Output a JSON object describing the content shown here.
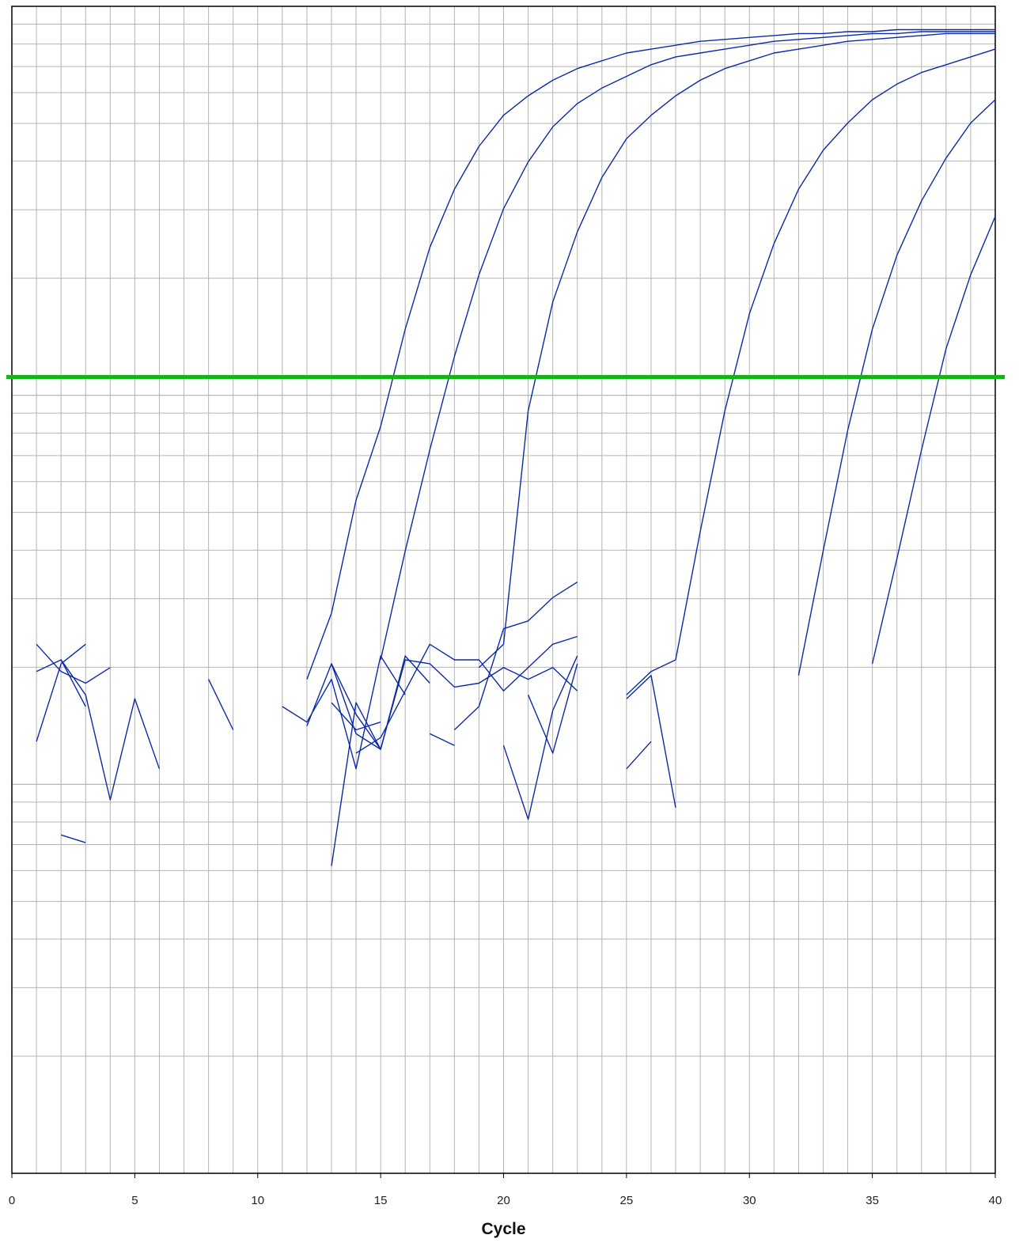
{
  "chart_data": {
    "type": "line",
    "title": "",
    "xlabel": "Cycle",
    "ylabel": "",
    "xlim": [
      0,
      40
    ],
    "xticks": [
      0,
      5,
      10,
      15,
      20,
      25,
      30,
      35,
      40
    ],
    "yscale": "log",
    "ylim_decades": [
      0,
      3
    ],
    "ytick_labels_visible": false,
    "grid": true,
    "legend": "none",
    "threshold": {
      "value_decades": 2.047,
      "color": "#16b316"
    },
    "line_color": "#0c2aa8",
    "series": [
      {
        "segments": [
          [
            [
              1,
              1.29
            ],
            [
              2,
              1.32
            ],
            [
              3,
              1.23
            ],
            [
              4,
              0.96
            ],
            [
              5,
              1.22
            ],
            [
              6,
              1.04
            ]
          ],
          [
            [
              12,
              1.27
            ],
            [
              13,
              1.44
            ],
            [
              14,
              1.73
            ],
            [
              15,
              1.92
            ],
            [
              16,
              2.17
            ],
            [
              17,
              2.38
            ],
            [
              18,
              2.53
            ],
            [
              19,
              2.64
            ],
            [
              20,
              2.72
            ],
            [
              21,
              2.77
            ],
            [
              22,
              2.81
            ],
            [
              23,
              2.84
            ],
            [
              24,
              2.86
            ],
            [
              25,
              2.88
            ],
            [
              26,
              2.89
            ],
            [
              27,
              2.9
            ],
            [
              28,
              2.91
            ],
            [
              29,
              2.915
            ],
            [
              30,
              2.92
            ],
            [
              31,
              2.925
            ],
            [
              32,
              2.93
            ],
            [
              33,
              2.93
            ],
            [
              34,
              2.935
            ],
            [
              35,
              2.935
            ],
            [
              36,
              2.94
            ],
            [
              37,
              2.94
            ],
            [
              38,
              2.94
            ],
            [
              39,
              2.94
            ],
            [
              40,
              2.94
            ]
          ]
        ]
      },
      {
        "segments": [
          [
            [
              1,
              1.11
            ],
            [
              2,
              1.31
            ],
            [
              3,
              1.36
            ]
          ],
          [
            [
              15,
              1.32
            ],
            [
              16,
              1.6
            ],
            [
              17,
              1.86
            ],
            [
              18,
              2.1
            ],
            [
              19,
              2.31
            ],
            [
              20,
              2.48
            ],
            [
              21,
              2.6
            ],
            [
              22,
              2.69
            ],
            [
              23,
              2.75
            ],
            [
              24,
              2.79
            ],
            [
              25,
              2.82
            ],
            [
              26,
              2.85
            ],
            [
              27,
              2.87
            ],
            [
              28,
              2.88
            ],
            [
              29,
              2.89
            ],
            [
              30,
              2.9
            ],
            [
              31,
              2.91
            ],
            [
              32,
              2.915
            ],
            [
              33,
              2.92
            ],
            [
              34,
              2.925
            ],
            [
              35,
              2.93
            ],
            [
              36,
              2.93
            ],
            [
              37,
              2.935
            ],
            [
              38,
              2.935
            ],
            [
              39,
              2.935
            ],
            [
              40,
              2.935
            ]
          ]
        ]
      },
      {
        "segments": [
          [
            [
              1,
              1.36
            ],
            [
              2,
              1.29
            ],
            [
              3,
              1.26
            ],
            [
              4,
              1.3
            ]
          ],
          [
            [
              19,
              1.3
            ],
            [
              20,
              1.36
            ],
            [
              21,
              1.96
            ],
            [
              22,
              2.24
            ],
            [
              23,
              2.42
            ],
            [
              24,
              2.56
            ],
            [
              25,
              2.66
            ],
            [
              26,
              2.72
            ],
            [
              27,
              2.77
            ],
            [
              28,
              2.81
            ],
            [
              29,
              2.84
            ],
            [
              30,
              2.86
            ],
            [
              31,
              2.88
            ],
            [
              32,
              2.89
            ],
            [
              33,
              2.9
            ],
            [
              34,
              2.91
            ],
            [
              35,
              2.915
            ],
            [
              36,
              2.92
            ],
            [
              37,
              2.925
            ],
            [
              38,
              2.93
            ],
            [
              39,
              2.93
            ],
            [
              40,
              2.93
            ]
          ]
        ]
      },
      {
        "segments": [
          [
            [
              2,
              1.32
            ],
            [
              3,
              1.2
            ]
          ],
          [
            [
              11,
              1.2
            ],
            [
              12,
              1.16
            ],
            [
              13,
              1.27
            ],
            [
              14,
              1.04
            ],
            [
              15,
              1.33
            ],
            [
              16,
              1.23
            ]
          ],
          [
            [
              25,
              1.23
            ],
            [
              26,
              1.29
            ],
            [
              27,
              1.32
            ],
            [
              28,
              1.65
            ],
            [
              29,
              1.96
            ],
            [
              30,
              2.21
            ],
            [
              31,
              2.39
            ],
            [
              32,
              2.53
            ],
            [
              33,
              2.63
            ],
            [
              34,
              2.7
            ],
            [
              35,
              2.76
            ],
            [
              36,
              2.8
            ],
            [
              37,
              2.83
            ],
            [
              38,
              2.85
            ],
            [
              39,
              2.87
            ],
            [
              40,
              2.89
            ]
          ]
        ]
      },
      {
        "segments": [
          [
            [
              8,
              1.27
            ],
            [
              9,
              1.14
            ]
          ],
          [
            [
              13,
              0.79
            ],
            [
              14,
              1.21
            ],
            [
              15,
              1.09
            ],
            [
              16,
              1.32
            ],
            [
              17,
              1.31
            ],
            [
              18,
              1.25
            ],
            [
              19,
              1.26
            ],
            [
              20,
              1.3
            ],
            [
              21,
              1.27
            ],
            [
              22,
              1.3
            ],
            [
              23,
              1.24
            ]
          ],
          [
            [
              32,
              1.28
            ],
            [
              33,
              1.6
            ],
            [
              34,
              1.91
            ],
            [
              35,
              2.17
            ],
            [
              36,
              2.36
            ],
            [
              37,
              2.5
            ],
            [
              38,
              2.61
            ],
            [
              39,
              2.7
            ],
            [
              40,
              2.76
            ]
          ]
        ]
      },
      {
        "segments": [
          [
            [
              12,
              1.15
            ],
            [
              13,
              1.31
            ],
            [
              14,
              1.18
            ],
            [
              15,
              1.09
            ],
            [
              16,
              1.33
            ],
            [
              17,
              1.26
            ]
          ],
          [
            [
              21,
              1.23
            ],
            [
              22,
              1.08
            ],
            [
              23,
              1.31
            ]
          ],
          [
            [
              35,
              1.31
            ],
            [
              36,
              1.58
            ],
            [
              37,
              1.86
            ],
            [
              38,
              2.12
            ],
            [
              39,
              2.31
            ],
            [
              40,
              2.46
            ]
          ]
        ]
      },
      {
        "segments": [
          [
            [
              2,
              0.87
            ],
            [
              3,
              0.85
            ]
          ],
          [
            [
              13,
              1.31
            ],
            [
              14,
              1.13
            ],
            [
              15,
              1.09
            ]
          ],
          [
            [
              18,
              1.14
            ],
            [
              19,
              1.2
            ],
            [
              20,
              1.4
            ],
            [
              21,
              1.42
            ],
            [
              22,
              1.48
            ],
            [
              23,
              1.52
            ]
          ]
        ]
      },
      {
        "segments": [
          [
            [
              14,
              1.08
            ],
            [
              15,
              1.12
            ],
            [
              16,
              1.24
            ],
            [
              17,
              1.36
            ],
            [
              18,
              1.32
            ],
            [
              19,
              1.32
            ],
            [
              20,
              1.24
            ],
            [
              21,
              1.3
            ],
            [
              22,
              1.36
            ],
            [
              23,
              1.38
            ]
          ]
        ]
      },
      {
        "segments": [
          [
            [
              13,
              1.21
            ],
            [
              14,
              1.14
            ],
            [
              15,
              1.16
            ]
          ],
          [
            [
              17,
              1.13
            ],
            [
              18,
              1.1
            ]
          ],
          [
            [
              20,
              1.1
            ],
            [
              21,
              0.91
            ],
            [
              22,
              1.19
            ],
            [
              23,
              1.33
            ]
          ]
        ]
      },
      {
        "segments": [
          [
            [
              25,
              1.04
            ],
            [
              26,
              1.11
            ]
          ],
          [
            [
              25,
              1.22
            ],
            [
              26,
              1.28
            ],
            [
              27,
              0.94
            ]
          ]
        ]
      }
    ]
  }
}
